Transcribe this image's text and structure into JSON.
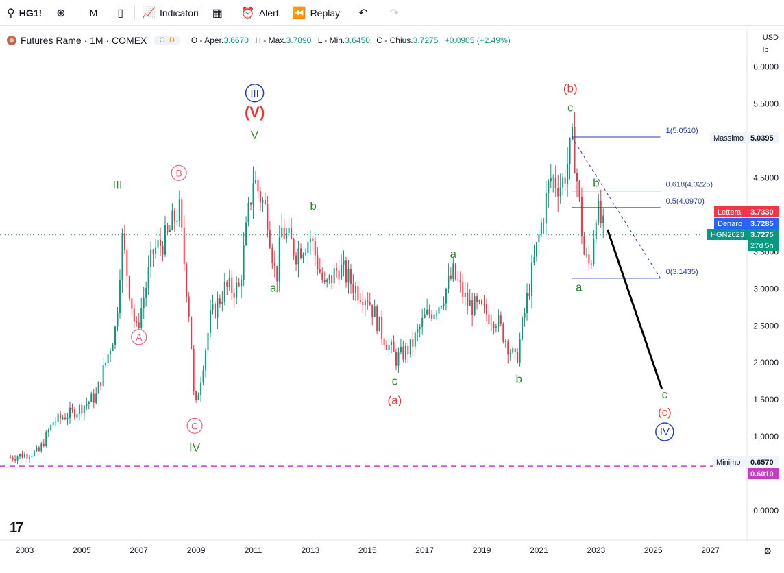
{
  "toolbar": {
    "symbol": "HG1!",
    "interval": "M",
    "indicators_label": "Indicatori",
    "alert_label": "Alert",
    "replay_label": "Replay"
  },
  "header": {
    "title": "Futures Rame · 1M · COMEX",
    "pill_g": "G",
    "pill_d": "D",
    "o_label": "O - Aper.",
    "o_value": "3.6670",
    "h_label": "H - Max.",
    "h_value": "3.7890",
    "l_label": "L - Min.",
    "l_value": "3.6450",
    "c_label": "C - Chius.",
    "c_value": "3.7275",
    "change": "+0.0905 (+2.49%)"
  },
  "axis_units": {
    "currency": "USD",
    "unit": "lb"
  },
  "colors": {
    "up": "#089981",
    "down": "#f23645",
    "wave_green": "#2e8b2e",
    "wave_red": "#e53935",
    "wave_blue": "#1f3fbf",
    "wave_pink": "#e8647a",
    "fib": "#2a3fa0",
    "minimo_line": "#c140c1"
  },
  "chart_data": {
    "type": "candlestick",
    "interval": "1M",
    "x_ticks": [
      "2003",
      "2005",
      "2007",
      "2009",
      "2011",
      "2013",
      "2015",
      "2017",
      "2019",
      "2021",
      "2023",
      "2025",
      "2027"
    ],
    "y_ticks": [
      "6.0000",
      "5.5000",
      "4.5000",
      "3.5000",
      "3.0000",
      "2.5000",
      "2.0000",
      "1.5000",
      "1.0000",
      "0.0000"
    ],
    "ylim": [
      -0.35,
      6.5
    ],
    "price_path": [
      [
        2002.5,
        0.72
      ],
      [
        2003.5,
        0.8
      ],
      [
        2004.0,
        1.2
      ],
      [
        2004.8,
        1.35
      ],
      [
        2005.5,
        1.55
      ],
      [
        2006.2,
        2.5
      ],
      [
        2006.4,
        3.7
      ],
      [
        2006.9,
        2.4
      ],
      [
        2007.5,
        3.5
      ],
      [
        2008.0,
        3.7
      ],
      [
        2008.4,
        4.1
      ],
      [
        2008.8,
        2.5
      ],
      [
        2008.95,
        1.3
      ],
      [
        2009.5,
        2.6
      ],
      [
        2010.0,
        3.0
      ],
      [
        2010.5,
        3.0
      ],
      [
        2011.0,
        4.5
      ],
      [
        2011.5,
        4.0
      ],
      [
        2011.8,
        3.1
      ],
      [
        2012.0,
        3.8
      ],
      [
        2012.5,
        3.5
      ],
      [
        2013.0,
        3.7
      ],
      [
        2013.5,
        3.0
      ],
      [
        2014.0,
        3.3
      ],
      [
        2014.6,
        3.0
      ],
      [
        2015.0,
        2.9
      ],
      [
        2015.5,
        2.4
      ],
      [
        2016.0,
        2.05
      ],
      [
        2016.5,
        2.2
      ],
      [
        2017.0,
        2.6
      ],
      [
        2017.5,
        2.8
      ],
      [
        2018.0,
        3.2
      ],
      [
        2018.5,
        2.8
      ],
      [
        2019.0,
        2.7
      ],
      [
        2019.5,
        2.6
      ],
      [
        2020.2,
        2.0
      ],
      [
        2020.6,
        2.9
      ],
      [
        2021.0,
        3.7
      ],
      [
        2021.4,
        4.5
      ],
      [
        2021.8,
        4.4
      ],
      [
        2022.2,
        5.0
      ],
      [
        2022.4,
        4.2
      ],
      [
        2022.6,
        3.4
      ],
      [
        2022.8,
        3.3
      ],
      [
        2023.0,
        4.1
      ],
      [
        2023.3,
        3.73
      ]
    ],
    "projection": [
      [
        2023.4,
        3.8
      ],
      [
        2025.3,
        1.65
      ]
    ],
    "fib_levels": [
      {
        "label": "1(5.0510)",
        "value": 5.051
      },
      {
        "label": "0.618(4.3225)",
        "value": 4.3225
      },
      {
        "label": "0.5(4.0970)",
        "value": 4.097
      },
      {
        "label": "0(3.1435)",
        "value": 3.1435
      }
    ],
    "price_labels": [
      {
        "name": "Massimo",
        "value": "5.0395"
      },
      {
        "name": "Lettera",
        "value": "3.7330"
      },
      {
        "name": "Denaro",
        "value": "3.7285"
      },
      {
        "name": "HGN2023",
        "value": "3.7275",
        "sub": "27d 5h"
      },
      {
        "name": "Minimo",
        "value": "0.6570"
      },
      {
        "name": "",
        "value": "0.6010"
      }
    ],
    "wave_labels": [
      {
        "text": "III",
        "style": "green",
        "x": 2006.25,
        "y": 4.35
      },
      {
        "text": "B",
        "style": "pink-circle",
        "x": 2008.4,
        "y": 4.52
      },
      {
        "text": "A",
        "style": "pink-circle",
        "x": 2007.0,
        "y": 2.3
      },
      {
        "text": "C",
        "style": "pink-circle",
        "x": 2008.95,
        "y": 1.1
      },
      {
        "text": "IV",
        "style": "green",
        "x": 2008.95,
        "y": 0.8
      },
      {
        "text": "III",
        "style": "blue-circle",
        "x": 2011.05,
        "y": 5.6
      },
      {
        "text": "(V)",
        "style": "red-bold",
        "x": 2011.05,
        "y": 5.32
      },
      {
        "text": "V",
        "style": "green",
        "x": 2011.05,
        "y": 5.03
      },
      {
        "text": "b",
        "style": "green",
        "x": 2013.1,
        "y": 4.07
      },
      {
        "text": "a",
        "style": "green",
        "x": 2011.7,
        "y": 2.96
      },
      {
        "text": "c",
        "style": "green",
        "x": 2015.95,
        "y": 1.7
      },
      {
        "text": "(a)",
        "style": "red",
        "x": 2015.95,
        "y": 1.44
      },
      {
        "text": "a",
        "style": "green",
        "x": 2018.0,
        "y": 3.42
      },
      {
        "text": "b",
        "style": "green",
        "x": 2020.3,
        "y": 1.73
      },
      {
        "text": "(b)",
        "style": "red",
        "x": 2022.1,
        "y": 5.66
      },
      {
        "text": "c",
        "style": "green",
        "x": 2022.1,
        "y": 5.4
      },
      {
        "text": "b",
        "style": "green",
        "x": 2023.0,
        "y": 4.38
      },
      {
        "text": "a",
        "style": "green",
        "x": 2022.4,
        "y": 2.97
      },
      {
        "text": "c",
        "style": "green",
        "x": 2025.4,
        "y": 1.52
      },
      {
        "text": "(c)",
        "style": "red",
        "x": 2025.4,
        "y": 1.28
      },
      {
        "text": "IV",
        "style": "blue-circle",
        "x": 2025.4,
        "y": 1.02
      }
    ]
  }
}
